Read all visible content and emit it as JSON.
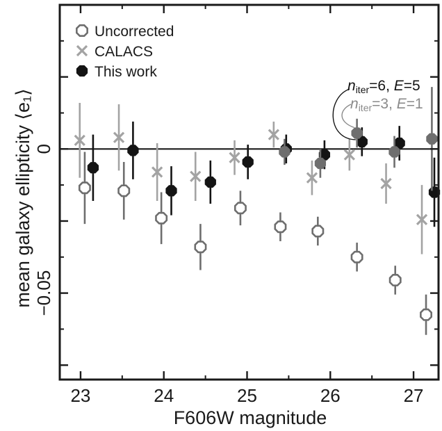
{
  "chart_data": {
    "type": "scatter",
    "xlabel": "F606W magnitude",
    "ylabel": "mean galaxy ellipticity ⟨e₁⟩",
    "xlim": [
      22.75,
      27.3
    ],
    "ylim": [
      -0.08,
      0.05
    ],
    "x_ticks": [
      23,
      24,
      25,
      26,
      27
    ],
    "y_ticks": [
      {
        "value": 0,
        "label": "0"
      },
      {
        "value": -0.05,
        "label": "−0.05"
      }
    ],
    "zero_line": true,
    "grid": false,
    "legend_position": "top-left",
    "series": [
      {
        "name": "Uncorrected",
        "marker": "open-octagon",
        "color": "#6e6e6e",
        "points": [
          {
            "x": 23.05,
            "y": -0.0135,
            "err": 0.0125
          },
          {
            "x": 23.52,
            "y": -0.0145,
            "err": 0.01
          },
          {
            "x": 23.97,
            "y": -0.024,
            "err": 0.009
          },
          {
            "x": 24.44,
            "y": -0.034,
            "err": 0.008
          },
          {
            "x": 24.92,
            "y": -0.0205,
            "err": 0.006
          },
          {
            "x": 25.4,
            "y": -0.027,
            "err": 0.005
          },
          {
            "x": 25.85,
            "y": -0.0285,
            "err": 0.005
          },
          {
            "x": 26.32,
            "y": -0.0375,
            "err": 0.005
          },
          {
            "x": 26.78,
            "y": -0.0455,
            "err": 0.005
          },
          {
            "x": 27.15,
            "y": -0.0575,
            "err": 0.007
          }
        ]
      },
      {
        "name": "CALACS",
        "marker": "x",
        "color": "#a3a3a3",
        "points": [
          {
            "x": 22.99,
            "y": 0.003,
            "err": 0.013
          },
          {
            "x": 23.46,
            "y": 0.004,
            "err": 0.0115
          },
          {
            "x": 23.92,
            "y": -0.008,
            "err": 0.01
          },
          {
            "x": 24.38,
            "y": -0.0095,
            "err": 0.0085
          },
          {
            "x": 24.85,
            "y": -0.003,
            "err": 0.006
          },
          {
            "x": 25.32,
            "y": 0.005,
            "err": 0.0045
          },
          {
            "x": 25.78,
            "y": -0.01,
            "err": 0.006
          },
          {
            "x": 26.23,
            "y": -0.002,
            "err": 0.0055
          },
          {
            "x": 26.67,
            "y": -0.012,
            "err": 0.007
          },
          {
            "x": 27.1,
            "y": -0.0245,
            "err": 0.012
          }
        ]
      },
      {
        "name": "This work",
        "marker": "filled-octagon",
        "color": "#141414",
        "points": [
          {
            "x": 23.15,
            "y": -0.0065,
            "err": 0.0115
          },
          {
            "x": 23.63,
            "y": -0.0005,
            "err": 0.01
          },
          {
            "x": 24.09,
            "y": -0.0145,
            "err": 0.0085
          },
          {
            "x": 24.56,
            "y": -0.0115,
            "err": 0.0075
          },
          {
            "x": 25.01,
            "y": -0.0045,
            "err": 0.006
          },
          {
            "x": 25.47,
            "y": 0.0,
            "err": 0.005
          },
          {
            "x": 25.93,
            "y": -0.002,
            "err": 0.005
          },
          {
            "x": 26.38,
            "y": 0.0025,
            "err": 0.005
          },
          {
            "x": 26.83,
            "y": 0.002,
            "err": 0.006
          },
          {
            "x": 27.25,
            "y": -0.015,
            "err": 0.012
          }
        ]
      },
      {
        "name": "n_iter=3, E=1",
        "marker": "filled-octagon",
        "color": "#6e6e6e",
        "points": [
          {
            "x": 25.45,
            "y": -0.001,
            "err": 0.0045
          },
          {
            "x": 25.88,
            "y": -0.005,
            "err": 0.005
          },
          {
            "x": 26.32,
            "y": 0.0055,
            "err": 0.005
          },
          {
            "x": 26.77,
            "y": -0.001,
            "err": 0.0055
          },
          {
            "x": 27.22,
            "y": 0.0035,
            "err": 0.018
          }
        ]
      }
    ],
    "legend": [
      {
        "label": "Uncorrected",
        "marker": "open-octagon",
        "color": "#6e6e6e"
      },
      {
        "label": "CALACS",
        "marker": "x",
        "color": "#a3a3a3"
      },
      {
        "label": "This work",
        "marker": "filled-octagon",
        "color": "#141414"
      }
    ],
    "annotations": [
      {
        "italic": "n",
        "sub": "iter",
        "rest1": "=6, ",
        "italic2": "E",
        "rest2": "=5",
        "color": "#141414"
      },
      {
        "italic": "n",
        "sub": "iter",
        "rest1": "=3, ",
        "italic2": "E",
        "rest2": "=1",
        "color": "#8a8a8a"
      }
    ]
  }
}
